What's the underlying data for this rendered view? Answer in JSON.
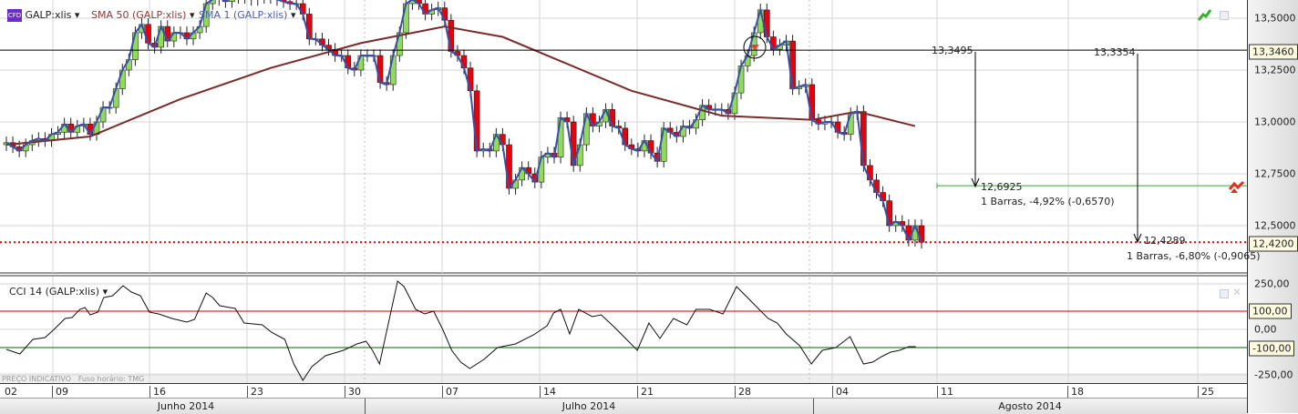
{
  "legend": {
    "symbol": "GALP:xlis",
    "symbol_badge": "CFD",
    "sma50": "SMA 50 (GALP:xlis)",
    "sma1": "SMA 1 (GALP:xlis)",
    "cci": "CCI 14 (GALP:xlis)"
  },
  "colors": {
    "up": "#8fdc5c",
    "down": "#e8000b",
    "sma50": "#7b2a2a",
    "sma1": "#3a4fa8",
    "cci_upper": "#cc0000",
    "cci_lower": "#006600",
    "measure": "#33aa33",
    "last_price": "#e00000"
  },
  "footer": {
    "price_note": "PREÇO INDICATIVO",
    "timezone": "Fuso horário: TMG"
  },
  "price_axis": {
    "ticks": [
      "13,5000",
      "13,2500",
      "13,0000",
      "12,7500",
      "12,5000"
    ],
    "line_label": "13,3460",
    "last_label": "12,4200"
  },
  "cci_axis": {
    "ticks": [
      "250,00",
      "0,00",
      "-250,00"
    ],
    "upper_label": "100,00",
    "lower_label": "-100,00"
  },
  "dates": [
    "02",
    "09",
    "16",
    "23",
    "30",
    "07",
    "14",
    "21",
    "28",
    "04",
    "11",
    "18",
    "25"
  ],
  "months": [
    "Junho 2014",
    "Julho 2014",
    "Agosto 2014"
  ],
  "annotations": {
    "m1_start": "13,3495",
    "m1_end": "12,6925",
    "m1_info": "1 Barras, -4,92% (-0,6570)",
    "m2_start": "13,3354",
    "m2_end": "12,4289",
    "m2_info": "1 Barras, -6,80% (-0,9065)"
  },
  "chart_data": {
    "type": "candlestick",
    "title": "GALP:xlis",
    "ylim": [
      12.35,
      13.59
    ],
    "horizontal_line": 13.346,
    "measure_level": 12.6925,
    "last_price": 12.42,
    "close": [
      12.9,
      12.88,
      12.86,
      12.89,
      12.91,
      12.92,
      12.91,
      12.94,
      12.95,
      12.99,
      12.95,
      12.98,
      12.99,
      12.94,
      13.0,
      13.07,
      13.07,
      13.16,
      13.25,
      13.3,
      13.43,
      13.47,
      13.38,
      13.36,
      13.46,
      13.39,
      13.43,
      13.43,
      13.4,
      13.43,
      13.46,
      13.57,
      13.59,
      13.6,
      13.58,
      13.61,
      13.6,
      13.62,
      13.59,
      13.6,
      13.61,
      13.6,
      13.59,
      13.58,
      13.57,
      13.57,
      13.52,
      13.4,
      13.4,
      13.37,
      13.35,
      13.32,
      13.32,
      13.26,
      13.25,
      13.32,
      13.32,
      13.32,
      13.19,
      13.18,
      13.32,
      13.43,
      13.57,
      13.59,
      13.57,
      13.52,
      13.54,
      13.55,
      13.49,
      13.34,
      13.32,
      13.26,
      13.15,
      12.86,
      12.87,
      12.86,
      12.94,
      12.89,
      12.68,
      12.72,
      12.78,
      12.75,
      12.71,
      12.83,
      12.85,
      12.83,
      13.02,
      13.0,
      12.79,
      12.89,
      13.04,
      12.98,
      13.0,
      13.06,
      12.98,
      12.97,
      12.89,
      12.87,
      12.86,
      12.91,
      12.85,
      12.81,
      12.97,
      12.95,
      12.93,
      12.98,
      12.97,
      13.01,
      13.08,
      13.06,
      13.06,
      13.06,
      13.04,
      13.14,
      13.27,
      13.32,
      13.43,
      13.54,
      13.41,
      13.35,
      13.37,
      13.39,
      13.16,
      13.17,
      13.18,
      13.01,
      12.99,
      13.0,
      13.0,
      12.95,
      12.94,
      13.04,
      13.05,
      12.79,
      12.72,
      12.66,
      12.62,
      12.5,
      12.52,
      12.5,
      12.43,
      12.5,
      12.42
    ],
    "sma50": [
      [
        0,
        12.89
      ],
      [
        13,
        12.93
      ],
      [
        27,
        13.11
      ],
      [
        41,
        13.26
      ],
      [
        55,
        13.38
      ],
      [
        68,
        13.46
      ],
      [
        77,
        13.41
      ],
      [
        97,
        13.15
      ],
      [
        111,
        13.03
      ],
      [
        125,
        13.01
      ],
      [
        132,
        13.05
      ],
      [
        141,
        12.98
      ]
    ],
    "cci": {
      "ylim": [
        -250,
        250
      ],
      "levels": [
        100,
        -100
      ],
      "points": [
        [
          0,
          -110
        ],
        [
          2.1,
          -135
        ],
        [
          4.1,
          -55
        ],
        [
          6,
          -45
        ],
        [
          7.4,
          0
        ],
        [
          9.1,
          60
        ],
        [
          10.2,
          65
        ],
        [
          11.4,
          110
        ],
        [
          12.2,
          120
        ],
        [
          13,
          80
        ],
        [
          14.2,
          95
        ],
        [
          15.1,
          175
        ],
        [
          16.5,
          185
        ],
        [
          18.1,
          240
        ],
        [
          19.4,
          205
        ],
        [
          20.8,
          185
        ],
        [
          22.2,
          95
        ],
        [
          23.6,
          85
        ],
        [
          25.7,
          60
        ],
        [
          28,
          40
        ],
        [
          29.2,
          55
        ],
        [
          31,
          200
        ],
        [
          32,
          175
        ],
        [
          33.1,
          130
        ],
        [
          35.5,
          115
        ],
        [
          36.9,
          35
        ],
        [
          39.7,
          25
        ],
        [
          41.1,
          -15
        ],
        [
          43.2,
          -55
        ],
        [
          44.6,
          -190
        ],
        [
          46,
          -280
        ],
        [
          47.4,
          -205
        ],
        [
          49.5,
          -145
        ],
        [
          52.3,
          -115
        ],
        [
          54.4,
          -80
        ],
        [
          55.8,
          -65
        ],
        [
          56.8,
          -115
        ],
        [
          57.9,
          -190
        ],
        [
          60.7,
          265
        ],
        [
          61.7,
          235
        ],
        [
          63.5,
          110
        ],
        [
          64.9,
          85
        ],
        [
          66.3,
          100
        ],
        [
          67.7,
          0
        ],
        [
          69.1,
          -115
        ],
        [
          70.5,
          -180
        ],
        [
          71.9,
          -215
        ],
        [
          74.1,
          -165
        ],
        [
          76.2,
          -100
        ],
        [
          79,
          -80
        ],
        [
          81.8,
          -30
        ],
        [
          83.9,
          20
        ],
        [
          84.9,
          90
        ],
        [
          86,
          110
        ],
        [
          87.4,
          -25
        ],
        [
          88.8,
          110
        ],
        [
          90.9,
          70
        ],
        [
          92.3,
          80
        ],
        [
          94.4,
          10
        ],
        [
          96.5,
          -65
        ],
        [
          97.9,
          -115
        ],
        [
          99.7,
          35
        ],
        [
          101.4,
          -50
        ],
        [
          103.5,
          60
        ],
        [
          105.6,
          25
        ],
        [
          107,
          110
        ],
        [
          109.1,
          110
        ],
        [
          111.2,
          85
        ],
        [
          113.3,
          235
        ],
        [
          114.7,
          185
        ],
        [
          116.8,
          110
        ],
        [
          118.2,
          60
        ],
        [
          119.6,
          35
        ],
        [
          121,
          -25
        ],
        [
          123.1,
          -90
        ],
        [
          124.9,
          -190
        ],
        [
          126.6,
          -115
        ],
        [
          128.7,
          -100
        ],
        [
          130.9,
          -40
        ],
        [
          133,
          -190
        ],
        [
          134.4,
          -180
        ],
        [
          135.8,
          -150
        ],
        [
          137.2,
          -125
        ],
        [
          138.6,
          -115
        ],
        [
          140,
          -95
        ],
        [
          141.1,
          -95
        ]
      ]
    }
  }
}
